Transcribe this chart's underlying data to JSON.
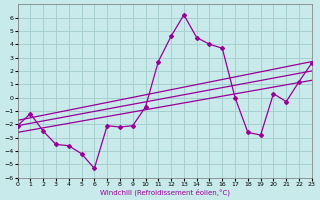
{
  "xlabel": "Windchill (Refroidissement éolien,°C)",
  "background_color": "#c8eaea",
  "grid_color": "#a8d0d0",
  "line_color": "#990099",
  "xlim": [
    0,
    23
  ],
  "ylim": [
    -6,
    7
  ],
  "xticks": [
    0,
    1,
    2,
    3,
    4,
    5,
    6,
    7,
    8,
    9,
    10,
    11,
    12,
    13,
    14,
    15,
    16,
    17,
    18,
    19,
    20,
    21,
    22,
    23
  ],
  "yticks": [
    -6,
    -5,
    -4,
    -3,
    -2,
    -1,
    0,
    1,
    2,
    3,
    4,
    5,
    6
  ],
  "scatter_x": [
    0,
    1,
    2,
    3,
    4,
    5,
    6,
    7,
    8,
    9,
    10,
    11,
    12,
    13,
    14,
    15,
    16,
    17,
    18,
    19,
    20,
    21,
    22,
    23
  ],
  "scatter_y": [
    -2.1,
    -1.2,
    -2.5,
    -3.5,
    -3.6,
    -4.2,
    -5.3,
    -2.1,
    -2.2,
    -2.1,
    -0.7,
    2.7,
    4.6,
    6.2,
    4.5,
    4.0,
    3.7,
    0.0,
    -2.6,
    -2.8,
    0.3,
    -0.3,
    1.2,
    2.6
  ],
  "trend1_x": [
    0,
    23
  ],
  "trend1_y": [
    -2.6,
    1.3
  ],
  "trend2_x": [
    0,
    23
  ],
  "trend2_y": [
    -2.1,
    2.0
  ],
  "trend3_x": [
    0,
    23
  ],
  "trend3_y": [
    -1.7,
    2.7
  ]
}
